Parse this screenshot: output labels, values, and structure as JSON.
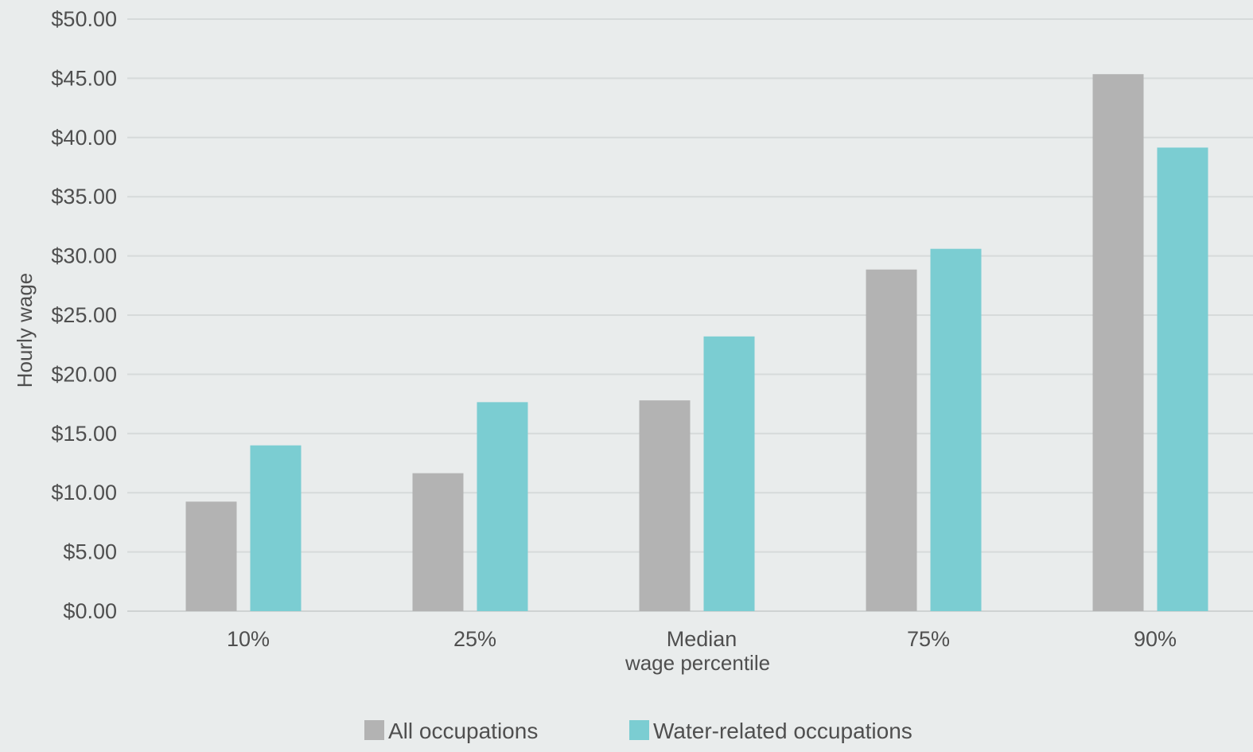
{
  "chart_data": {
    "type": "bar",
    "categories": [
      "10%",
      "25%",
      "Median",
      "75%",
      "90%"
    ],
    "series": [
      {
        "name": "All occupations",
        "color": "#b3b3b3",
        "values": [
          9.25,
          11.65,
          17.8,
          28.85,
          45.35
        ]
      },
      {
        "name": "Water-related occupations",
        "color": "#7bcdd2",
        "values": [
          14.0,
          17.65,
          23.2,
          30.6,
          39.15
        ]
      }
    ],
    "ylabel": "Hourly wage",
    "xlabel": "wage percentile",
    "ylim": [
      0,
      50
    ],
    "yticks": [
      0,
      5,
      10,
      15,
      20,
      25,
      30,
      35,
      40,
      45,
      50
    ],
    "ytick_labels": [
      "$0.00",
      "$5.00",
      "$10.00",
      "$15.00",
      "$20.00",
      "$25.00",
      "$30.00",
      "$35.00",
      "$40.00",
      "$45.00",
      "$50.00"
    ],
    "grid": true,
    "legend_position": "bottom"
  }
}
